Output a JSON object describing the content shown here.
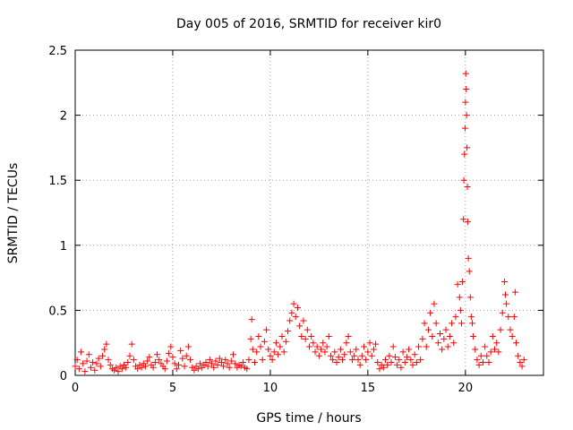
{
  "chart_data": {
    "type": "scatter",
    "title": "Day 005 of 2016, SRMTID for receiver kir0",
    "xlabel": "GPS time / hours",
    "ylabel": "SRMTID / TECUs",
    "xlim": [
      0,
      24
    ],
    "ylim": [
      0,
      2.5
    ],
    "xticks": [
      0,
      5,
      10,
      15,
      20
    ],
    "yticks": [
      0,
      0.5,
      1,
      1.5,
      2,
      2.5
    ],
    "grid": true,
    "marker": "+",
    "series_color": "#ff0000",
    "series": [
      {
        "name": "SRMTID",
        "points": [
          [
            0.0,
            0.07
          ],
          [
            0.1,
            0.12
          ],
          [
            0.2,
            0.05
          ],
          [
            0.3,
            0.18
          ],
          [
            0.4,
            0.09
          ],
          [
            0.5,
            0.03
          ],
          [
            0.6,
            0.11
          ],
          [
            0.7,
            0.16
          ],
          [
            0.8,
            0.06
          ],
          [
            0.9,
            0.1
          ],
          [
            1.0,
            0.04
          ],
          [
            1.1,
            0.09
          ],
          [
            1.2,
            0.13
          ],
          [
            1.3,
            0.07
          ],
          [
            1.4,
            0.15
          ],
          [
            1.5,
            0.2
          ],
          [
            1.6,
            0.24
          ],
          [
            1.7,
            0.12
          ],
          [
            1.8,
            0.08
          ],
          [
            1.9,
            0.05
          ],
          [
            2.0,
            0.04
          ],
          [
            2.1,
            0.06
          ],
          [
            2.2,
            0.03
          ],
          [
            2.3,
            0.07
          ],
          [
            2.4,
            0.05
          ],
          [
            2.5,
            0.08
          ],
          [
            2.6,
            0.06
          ],
          [
            2.7,
            0.1
          ],
          [
            2.8,
            0.15
          ],
          [
            2.9,
            0.24
          ],
          [
            3.0,
            0.12
          ],
          [
            3.1,
            0.07
          ],
          [
            3.2,
            0.05
          ],
          [
            3.3,
            0.08
          ],
          [
            3.4,
            0.06
          ],
          [
            3.5,
            0.09
          ],
          [
            3.6,
            0.07
          ],
          [
            3.7,
            0.11
          ],
          [
            3.8,
            0.14
          ],
          [
            3.9,
            0.08
          ],
          [
            4.0,
            0.06
          ],
          [
            4.1,
            0.1
          ],
          [
            4.2,
            0.16
          ],
          [
            4.3,
            0.12
          ],
          [
            4.4,
            0.09
          ],
          [
            4.5,
            0.07
          ],
          [
            4.6,
            0.05
          ],
          [
            4.7,
            0.11
          ],
          [
            4.8,
            0.17
          ],
          [
            4.9,
            0.22
          ],
          [
            5.0,
            0.14
          ],
          [
            5.1,
            0.09
          ],
          [
            5.2,
            0.05
          ],
          [
            5.3,
            0.08
          ],
          [
            5.4,
            0.19
          ],
          [
            5.5,
            0.13
          ],
          [
            5.6,
            0.07
          ],
          [
            5.7,
            0.15
          ],
          [
            5.8,
            0.22
          ],
          [
            5.9,
            0.12
          ],
          [
            6.0,
            0.06
          ],
          [
            6.1,
            0.04
          ],
          [
            6.2,
            0.07
          ],
          [
            6.3,
            0.05
          ],
          [
            6.4,
            0.09
          ],
          [
            6.5,
            0.06
          ],
          [
            6.6,
            0.08
          ],
          [
            6.7,
            0.1
          ],
          [
            6.8,
            0.07
          ],
          [
            6.9,
            0.12
          ],
          [
            7.0,
            0.09
          ],
          [
            7.1,
            0.06
          ],
          [
            7.2,
            0.11
          ],
          [
            7.3,
            0.08
          ],
          [
            7.4,
            0.13
          ],
          [
            7.5,
            0.1
          ],
          [
            7.6,
            0.07
          ],
          [
            7.7,
            0.12
          ],
          [
            7.8,
            0.09
          ],
          [
            7.9,
            0.06
          ],
          [
            8.0,
            0.11
          ],
          [
            8.1,
            0.16
          ],
          [
            8.2,
            0.09
          ],
          [
            8.3,
            0.06
          ],
          [
            8.4,
            0.08
          ],
          [
            8.5,
            0.07
          ],
          [
            8.6,
            0.1
          ],
          [
            8.7,
            0.06
          ],
          [
            8.8,
            0.05
          ],
          [
            8.9,
            0.12
          ],
          [
            9.0,
            0.28
          ],
          [
            9.05,
            0.43
          ],
          [
            9.1,
            0.2
          ],
          [
            9.2,
            0.1
          ],
          [
            9.3,
            0.18
          ],
          [
            9.4,
            0.3
          ],
          [
            9.5,
            0.22
          ],
          [
            9.6,
            0.12
          ],
          [
            9.7,
            0.26
          ],
          [
            9.8,
            0.35
          ],
          [
            9.9,
            0.2
          ],
          [
            10.0,
            0.15
          ],
          [
            10.1,
            0.12
          ],
          [
            10.2,
            0.18
          ],
          [
            10.3,
            0.25
          ],
          [
            10.4,
            0.16
          ],
          [
            10.5,
            0.22
          ],
          [
            10.6,
            0.3
          ],
          [
            10.7,
            0.18
          ],
          [
            10.8,
            0.26
          ],
          [
            10.9,
            0.34
          ],
          [
            11.0,
            0.42
          ],
          [
            11.1,
            0.48
          ],
          [
            11.2,
            0.55
          ],
          [
            11.3,
            0.45
          ],
          [
            11.4,
            0.52
          ],
          [
            11.5,
            0.38
          ],
          [
            11.6,
            0.3
          ],
          [
            11.7,
            0.42
          ],
          [
            11.8,
            0.28
          ],
          [
            11.9,
            0.35
          ],
          [
            12.0,
            0.22
          ],
          [
            12.1,
            0.3
          ],
          [
            12.2,
            0.25
          ],
          [
            12.3,
            0.18
          ],
          [
            12.4,
            0.22
          ],
          [
            12.5,
            0.15
          ],
          [
            12.6,
            0.2
          ],
          [
            12.7,
            0.25
          ],
          [
            12.8,
            0.18
          ],
          [
            12.9,
            0.22
          ],
          [
            13.0,
            0.3
          ],
          [
            13.1,
            0.15
          ],
          [
            13.2,
            0.12
          ],
          [
            13.3,
            0.18
          ],
          [
            13.4,
            0.1
          ],
          [
            13.5,
            0.14
          ],
          [
            13.6,
            0.2
          ],
          [
            13.7,
            0.12
          ],
          [
            13.8,
            0.16
          ],
          [
            13.9,
            0.25
          ],
          [
            14.0,
            0.3
          ],
          [
            14.1,
            0.18
          ],
          [
            14.2,
            0.12
          ],
          [
            14.3,
            0.15
          ],
          [
            14.4,
            0.2
          ],
          [
            14.5,
            0.12
          ],
          [
            14.6,
            0.08
          ],
          [
            14.7,
            0.15
          ],
          [
            14.8,
            0.22
          ],
          [
            14.9,
            0.12
          ],
          [
            15.0,
            0.18
          ],
          [
            15.1,
            0.25
          ],
          [
            15.2,
            0.15
          ],
          [
            15.3,
            0.2
          ],
          [
            15.4,
            0.24
          ],
          [
            15.5,
            0.1
          ],
          [
            15.6,
            0.05
          ],
          [
            15.7,
            0.08
          ],
          [
            15.8,
            0.06
          ],
          [
            15.9,
            0.12
          ],
          [
            16.0,
            0.08
          ],
          [
            16.1,
            0.15
          ],
          [
            16.2,
            0.1
          ],
          [
            16.3,
            0.22
          ],
          [
            16.4,
            0.14
          ],
          [
            16.5,
            0.08
          ],
          [
            16.6,
            0.12
          ],
          [
            16.7,
            0.06
          ],
          [
            16.8,
            0.18
          ],
          [
            16.9,
            0.1
          ],
          [
            17.0,
            0.14
          ],
          [
            17.1,
            0.2
          ],
          [
            17.2,
            0.12
          ],
          [
            17.3,
            0.08
          ],
          [
            17.4,
            0.16
          ],
          [
            17.5,
            0.1
          ],
          [
            17.6,
            0.22
          ],
          [
            17.7,
            0.12
          ],
          [
            17.8,
            0.28
          ],
          [
            17.9,
            0.4
          ],
          [
            18.0,
            0.22
          ],
          [
            18.1,
            0.35
          ],
          [
            18.2,
            0.48
          ],
          [
            18.3,
            0.3
          ],
          [
            18.4,
            0.55
          ],
          [
            18.5,
            0.4
          ],
          [
            18.6,
            0.25
          ],
          [
            18.7,
            0.32
          ],
          [
            18.8,
            0.2
          ],
          [
            18.9,
            0.28
          ],
          [
            19.0,
            0.35
          ],
          [
            19.1,
            0.22
          ],
          [
            19.2,
            0.3
          ],
          [
            19.3,
            0.4
          ],
          [
            19.4,
            0.25
          ],
          [
            19.5,
            0.45
          ],
          [
            19.6,
            0.7
          ],
          [
            19.7,
            0.6
          ],
          [
            19.75,
            0.5
          ],
          [
            19.8,
            0.4
          ],
          [
            19.85,
            0.72
          ],
          [
            19.9,
            1.2
          ],
          [
            19.92,
            1.5
          ],
          [
            19.95,
            1.7
          ],
          [
            19.98,
            1.9
          ],
          [
            20.0,
            2.1
          ],
          [
            20.02,
            2.32
          ],
          [
            20.04,
            2.2
          ],
          [
            20.06,
            2.0
          ],
          [
            20.08,
            1.75
          ],
          [
            20.1,
            1.45
          ],
          [
            20.12,
            1.18
          ],
          [
            20.15,
            0.9
          ],
          [
            20.2,
            0.8
          ],
          [
            20.25,
            0.6
          ],
          [
            20.3,
            0.45
          ],
          [
            20.35,
            0.4
          ],
          [
            20.4,
            0.3
          ],
          [
            20.5,
            0.2
          ],
          [
            20.6,
            0.12
          ],
          [
            20.7,
            0.08
          ],
          [
            20.8,
            0.15
          ],
          [
            20.9,
            0.1
          ],
          [
            21.0,
            0.22
          ],
          [
            21.1,
            0.15
          ],
          [
            21.2,
            0.1
          ],
          [
            21.3,
            0.18
          ],
          [
            21.4,
            0.3
          ],
          [
            21.5,
            0.2
          ],
          [
            21.6,
            0.25
          ],
          [
            21.7,
            0.18
          ],
          [
            21.8,
            0.35
          ],
          [
            21.9,
            0.48
          ],
          [
            22.0,
            0.72
          ],
          [
            22.05,
            0.62
          ],
          [
            22.1,
            0.55
          ],
          [
            22.2,
            0.45
          ],
          [
            22.3,
            0.35
          ],
          [
            22.4,
            0.3
          ],
          [
            22.5,
            0.45
          ],
          [
            22.55,
            0.64
          ],
          [
            22.6,
            0.25
          ],
          [
            22.7,
            0.15
          ],
          [
            22.8,
            0.1
          ],
          [
            22.9,
            0.07
          ],
          [
            23.0,
            0.12
          ]
        ]
      }
    ]
  }
}
